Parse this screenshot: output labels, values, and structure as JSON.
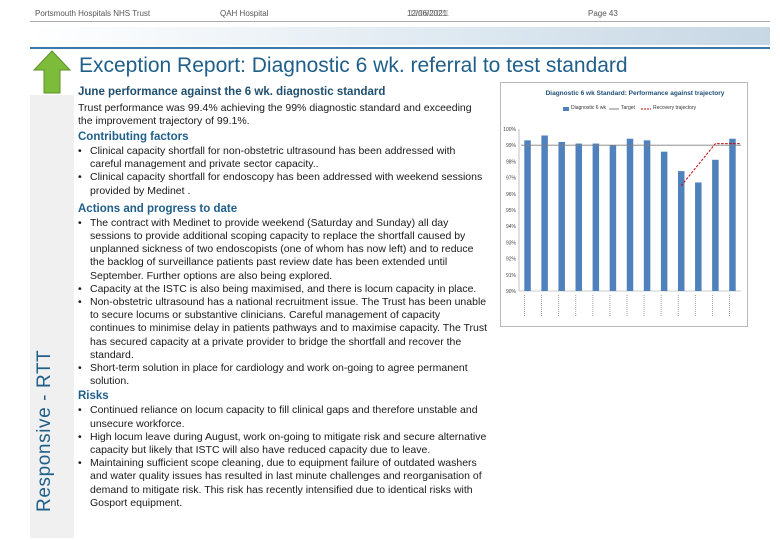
{
  "header": {
    "trust": "Portsmouth Hospitals NHS Trust",
    "hospital": "QAH Hospital",
    "date": "12/06/2021",
    "date_overlap": "12/08/2021",
    "page": "Page 43"
  },
  "side_label": "Responsive - RTT",
  "title": "Exception Report: Diagnostic 6 wk. referral to test standard",
  "sections": {
    "june_heading": "June performance against the 6 wk. diagnostic standard",
    "june_text": "Trust performance was 99.4% achieving the 99% diagnostic standard and exceeding the improvement trajectory of 99.1%.",
    "contributing_heading": "Contributing factors",
    "contributing": [
      "Clinical capacity shortfall for non-obstetric ultrasound has been addressed with careful management and private sector capacity..",
      "Clinical capacity shortfall for endoscopy has been addressed with weekend sessions provided by Medinet ."
    ],
    "actions_heading": "Actions and progress to date",
    "actions": [
      "The contract with Medinet to provide weekend (Saturday and Sunday) all day sessions to provide additional scoping capacity to replace the shortfall caused by unplanned sickness of two endoscopists (one of whom has now left) and to reduce the backlog of surveillance patients past review date has been extended until September. Further options are also being explored.",
      "Capacity at the ISTC is also being maximised, and there is locum capacity in place.",
      "Non-obstetric ultrasound has a national recruitment issue. The Trust has been unable to secure locums or substantive clinicians. Careful management of capacity continues to minimise delay in patients pathways and to maximise capacity. The Trust has secured capacity at a private provider to bridge the shortfall and recover the standard.",
      "Short-term solution in place for cardiology and work on-going to agree permanent solution."
    ],
    "risks_heading": "Risks",
    "risks": [
      "Continued reliance on locum capacity to fill clinical gaps and therefore unstable and unsecure workforce.",
      "High locum leave during August, work on-going to mitigate risk and secure alternative capacity but likely that ISTC will also have reduced capacity due to leave.",
      "Maintaining sufficient scope cleaning, due to equipment failure of outdated washers and water quality issues has resulted in last minute challenges and reorganisation of demand to mitigate risk. This risk has recently intensified due to identical risks with Gosport equipment."
    ]
  },
  "chart_data": {
    "type": "bar",
    "title": "Diagnostic 6 wk Standard: Performance against trajectory",
    "legend": [
      "Diagnostic 6 wk",
      "Target",
      "Recovery trajectory"
    ],
    "legend_placement": "top",
    "y_tick_labels": [
      "100%",
      "99%",
      "98%",
      "97%",
      "96%",
      "95%",
      "94%",
      "93%",
      "92%",
      "91%",
      "90%"
    ],
    "ylim": [
      90,
      100
    ],
    "bar_count": 13,
    "values": [
      99.3,
      99.6,
      99.2,
      99.1,
      99.1,
      99.0,
      99.4,
      99.3,
      98.6,
      97.4,
      96.7,
      98.1,
      99.4
    ],
    "target": 99,
    "trajectory": [
      null,
      null,
      null,
      null,
      null,
      null,
      null,
      null,
      null,
      96.5,
      97.8,
      99.1,
      99.1
    ],
    "colors": {
      "bars": "#4f81bd",
      "target": "#7f7f7f",
      "trajectory": "#c00000"
    }
  }
}
